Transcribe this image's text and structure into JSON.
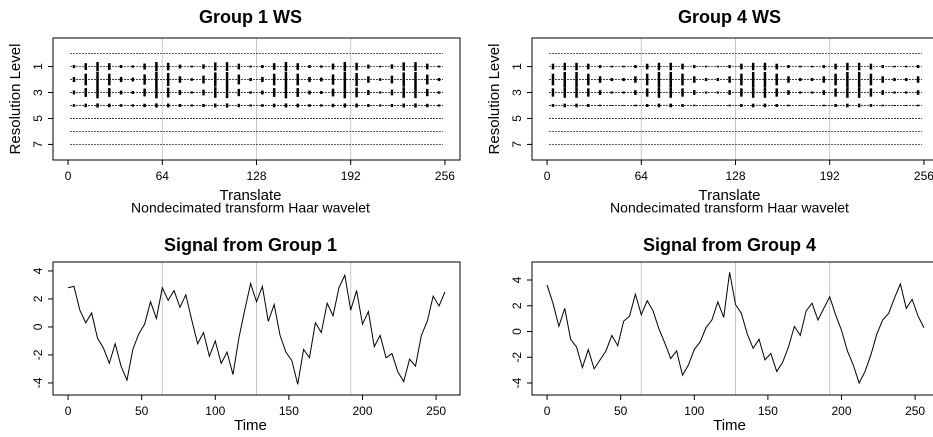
{
  "chart_data": [
    {
      "type": "wavelet",
      "title": "Group 1 WS",
      "xlabel": "Translate",
      "ylabel": "Resolution Level",
      "subtitle": "Nondecimated transform Haar wavelet",
      "xlim": [
        -10.24,
        266.24
      ],
      "ylim": [
        8.2,
        -1.2
      ],
      "xticks": [
        0,
        64,
        128,
        192,
        256
      ],
      "yticks": [
        1,
        3,
        5,
        7
      ],
      "levels": [
        0,
        1,
        2,
        3,
        4,
        5,
        6,
        7
      ],
      "vlines": [
        64,
        128,
        192
      ],
      "color": "#000000",
      "x": [
        4,
        12,
        20,
        28,
        36,
        44,
        52,
        60,
        68,
        76,
        84,
        92,
        100,
        108,
        116,
        124,
        132,
        140,
        148,
        156,
        164,
        172,
        180,
        188,
        196,
        204,
        212,
        220,
        228,
        236,
        244,
        252
      ],
      "series": [
        {
          "level": 1,
          "values": [
            0.12,
            0.26,
            0.35,
            0.26,
            0.12,
            0.09,
            0.23,
            0.35,
            0.29,
            0.15,
            0.06,
            0.17,
            0.32,
            0.34,
            0.22,
            0.07,
            0.12,
            0.26,
            0.35,
            0.26,
            0.12,
            0.09,
            0.23,
            0.35,
            0.29,
            0.15,
            0.06,
            0.17,
            0.32,
            0.34,
            0.22,
            0.07
          ]
        },
        {
          "level": 2,
          "values": [
            0.2,
            0.45,
            0.6,
            0.45,
            0.2,
            0.15,
            0.4,
            0.6,
            0.5,
            0.25,
            0.1,
            0.3,
            0.55,
            0.58,
            0.38,
            0.12,
            0.2,
            0.45,
            0.6,
            0.45,
            0.2,
            0.15,
            0.4,
            0.6,
            0.5,
            0.25,
            0.1,
            0.3,
            0.55,
            0.58,
            0.38,
            0.12
          ]
        },
        {
          "level": 3,
          "values": [
            0.15,
            0.34,
            0.45,
            0.34,
            0.15,
            0.11,
            0.3,
            0.45,
            0.38,
            0.19,
            0.08,
            0.22,
            0.41,
            0.43,
            0.28,
            0.09,
            0.15,
            0.34,
            0.45,
            0.34,
            0.15,
            0.11,
            0.3,
            0.45,
            0.38,
            0.19,
            0.08,
            0.22,
            0.41,
            0.43,
            0.28,
            0.09
          ]
        },
        {
          "level": 4,
          "values": [
            0.1,
            0.14,
            0.16,
            0.14,
            0.1,
            0.09,
            0.13,
            0.16,
            0.15,
            0.11,
            0.08,
            0.12,
            0.15,
            0.16,
            0.13,
            0.08,
            0.1,
            0.14,
            0.16,
            0.14,
            0.1,
            0.09,
            0.13,
            0.16,
            0.15,
            0.11,
            0.08,
            0.12,
            0.15,
            0.16,
            0.13,
            0.08
          ]
        }
      ]
    },
    {
      "type": "wavelet",
      "title": "Group 4 WS",
      "xlabel": "Translate",
      "ylabel": "Resolution Level",
      "subtitle": "Nondecimated transform Haar wavelet",
      "xlim": [
        -10.24,
        266.24
      ],
      "ylim": [
        8.2,
        -1.2
      ],
      "xticks": [
        0,
        64,
        128,
        192,
        256
      ],
      "yticks": [
        1,
        3,
        5,
        7
      ],
      "levels": [
        0,
        1,
        2,
        3,
        4,
        5,
        6,
        7
      ],
      "vlines": [
        64,
        128,
        192
      ],
      "color": "#000000",
      "x": [
        4,
        12,
        20,
        28,
        36,
        44,
        52,
        60,
        68,
        76,
        84,
        92,
        100,
        108,
        116,
        124,
        132,
        140,
        148,
        156,
        164,
        172,
        180,
        188,
        196,
        204,
        212,
        220,
        228,
        236,
        244,
        252
      ],
      "series": [
        {
          "level": 1,
          "values": [
            0.22,
            0.29,
            0.29,
            0.22,
            0.12,
            0.06,
            0.06,
            0.12,
            0.22,
            0.29,
            0.29,
            0.22,
            0.12,
            0.06,
            0.06,
            0.12,
            0.22,
            0.29,
            0.29,
            0.22,
            0.12,
            0.06,
            0.06,
            0.12,
            0.22,
            0.29,
            0.29,
            0.22,
            0.12,
            0.06,
            0.06,
            0.12
          ]
        },
        {
          "level": 2,
          "values": [
            0.45,
            0.58,
            0.58,
            0.45,
            0.25,
            0.12,
            0.12,
            0.25,
            0.45,
            0.58,
            0.58,
            0.45,
            0.25,
            0.12,
            0.12,
            0.25,
            0.45,
            0.58,
            0.58,
            0.45,
            0.25,
            0.12,
            0.12,
            0.25,
            0.45,
            0.58,
            0.58,
            0.45,
            0.25,
            0.12,
            0.12,
            0.25
          ]
        },
        {
          "level": 3,
          "values": [
            0.32,
            0.41,
            0.41,
            0.32,
            0.18,
            0.08,
            0.08,
            0.18,
            0.32,
            0.41,
            0.41,
            0.32,
            0.18,
            0.08,
            0.08,
            0.18,
            0.32,
            0.41,
            0.41,
            0.32,
            0.18,
            0.08,
            0.08,
            0.18,
            0.32,
            0.41,
            0.41,
            0.32,
            0.18,
            0.08,
            0.08,
            0.18
          ]
        },
        {
          "level": 4,
          "values": [
            0.11,
            0.14,
            0.14,
            0.11,
            0.06,
            0.03,
            0.03,
            0.06,
            0.11,
            0.14,
            0.14,
            0.11,
            0.06,
            0.03,
            0.03,
            0.06,
            0.11,
            0.14,
            0.14,
            0.11,
            0.06,
            0.03,
            0.03,
            0.06,
            0.11,
            0.14,
            0.14,
            0.11,
            0.06,
            0.03,
            0.03,
            0.06
          ]
        }
      ]
    },
    {
      "type": "line",
      "title": "Signal from Group 1",
      "xlabel": "Time",
      "xlim": [
        -10.24,
        266.24
      ],
      "ylim": [
        -4.86,
        4.64
      ],
      "xticks": [
        0,
        50,
        100,
        150,
        200,
        250
      ],
      "yticks": [
        -4,
        -2,
        0,
        2,
        4
      ],
      "vlines": [
        64,
        128,
        192
      ],
      "color": "#000000",
      "x": [
        0,
        4,
        8,
        12,
        16,
        20,
        24,
        28,
        32,
        36,
        40,
        44,
        48,
        52,
        56,
        60,
        64,
        68,
        72,
        76,
        80,
        84,
        88,
        92,
        96,
        100,
        104,
        108,
        112,
        116,
        120,
        124,
        128,
        132,
        136,
        140,
        144,
        148,
        152,
        156,
        160,
        164,
        168,
        172,
        176,
        180,
        184,
        188,
        192,
        196,
        200,
        204,
        208,
        212,
        216,
        220,
        224,
        228,
        232,
        236,
        240,
        244,
        248,
        252,
        256
      ],
      "values": [
        2.8,
        2.9,
        1.2,
        0.3,
        1.0,
        -0.8,
        -1.5,
        -2.6,
        -1.2,
        -2.8,
        -3.8,
        -1.6,
        -0.5,
        0.2,
        1.8,
        0.6,
        2.8,
        1.9,
        2.6,
        1.4,
        2.3,
        0.5,
        -1.2,
        -0.4,
        -2.1,
        -1.0,
        -2.6,
        -1.8,
        -3.4,
        -0.8,
        1.2,
        3.1,
        1.8,
        2.9,
        0.4,
        1.6,
        -0.6,
        -1.8,
        -2.4,
        -4.1,
        -1.6,
        -2.2,
        0.3,
        -0.4,
        1.7,
        0.8,
        2.8,
        3.7,
        1.2,
        2.6,
        0.2,
        1.1,
        -1.4,
        -0.6,
        -2.2,
        -1.9,
        -3.2,
        -3.9,
        -2.3,
        -2.8,
        -0.6,
        0.4,
        2.2,
        1.5,
        2.5
      ]
    },
    {
      "type": "line",
      "title": "Signal from Group 4",
      "xlabel": "Time",
      "xlim": [
        -10.24,
        266.24
      ],
      "ylim": [
        -4.93,
        5.4
      ],
      "xticks": [
        0,
        50,
        100,
        150,
        200,
        250
      ],
      "yticks": [
        -4,
        -2,
        0,
        2,
        4
      ],
      "vlines": [
        64,
        128,
        192
      ],
      "color": "#000000",
      "x": [
        0,
        4,
        8,
        12,
        16,
        20,
        24,
        28,
        32,
        36,
        40,
        44,
        48,
        52,
        56,
        60,
        64,
        68,
        72,
        76,
        80,
        84,
        88,
        92,
        96,
        100,
        104,
        108,
        112,
        116,
        120,
        124,
        128,
        132,
        136,
        140,
        144,
        148,
        152,
        156,
        160,
        164,
        168,
        172,
        176,
        180,
        184,
        188,
        192,
        196,
        200,
        204,
        208,
        212,
        216,
        220,
        224,
        228,
        232,
        236,
        240,
        244,
        248,
        252,
        256
      ],
      "values": [
        3.6,
        2.2,
        0.4,
        1.8,
        -0.6,
        -1.2,
        -2.8,
        -1.4,
        -2.9,
        -2.2,
        -1.5,
        -0.3,
        -1.1,
        0.8,
        1.2,
        2.9,
        1.3,
        2.4,
        1.6,
        0.2,
        -0.9,
        -2.1,
        -1.5,
        -3.4,
        -2.6,
        -1.4,
        -0.8,
        0.3,
        0.9,
        2.3,
        1.1,
        4.6,
        2.1,
        1.4,
        -0.2,
        -1.3,
        -0.6,
        -2.2,
        -1.7,
        -3.1,
        -2.4,
        -1.2,
        0.4,
        -0.3,
        1.6,
        2.2,
        0.9,
        1.8,
        2.7,
        1.3,
        0.1,
        -1.5,
        -2.6,
        -4.0,
        -3.1,
        -1.8,
        -0.2,
        0.9,
        1.4,
        2.6,
        3.7,
        1.8,
        2.5,
        1.2,
        0.3
      ]
    }
  ]
}
